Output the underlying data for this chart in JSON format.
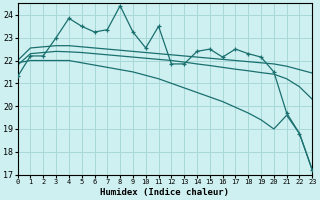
{
  "xlabel": "Humidex (Indice chaleur)",
  "bg_color": "#cff0f0",
  "grid_color": "#a8d8d8",
  "line_color": "#1a7070",
  "xlim": [
    0,
    23
  ],
  "ylim": [
    17,
    24.5
  ],
  "yticks": [
    17,
    18,
    19,
    20,
    21,
    22,
    23,
    24
  ],
  "xticks": [
    0,
    1,
    2,
    3,
    4,
    5,
    6,
    7,
    8,
    9,
    10,
    11,
    12,
    13,
    14,
    15,
    16,
    17,
    18,
    19,
    20,
    21,
    22,
    23
  ],
  "curve_jagged_x": [
    0,
    1,
    2,
    3,
    4,
    5,
    6,
    7,
    8,
    9,
    10,
    11,
    12,
    13,
    14,
    15,
    16,
    17,
    18,
    19,
    20,
    21,
    22,
    23
  ],
  "curve_jagged_y": [
    21.3,
    22.2,
    22.2,
    23.0,
    23.85,
    23.5,
    23.25,
    23.35,
    24.4,
    23.25,
    22.55,
    23.5,
    21.85,
    21.85,
    22.4,
    22.5,
    22.15,
    22.5,
    22.3,
    22.15,
    21.5,
    19.7,
    18.8,
    17.2
  ],
  "curve_upper_x": [
    0,
    1,
    2,
    3,
    4,
    5,
    6,
    7,
    8,
    9,
    10,
    11,
    12,
    13,
    14,
    15,
    16,
    17,
    18,
    19,
    20,
    21,
    22,
    23
  ],
  "curve_upper_y": [
    22.0,
    22.55,
    22.6,
    22.65,
    22.65,
    22.6,
    22.55,
    22.5,
    22.45,
    22.4,
    22.35,
    22.3,
    22.25,
    22.2,
    22.15,
    22.1,
    22.05,
    22.0,
    21.95,
    21.9,
    21.85,
    21.75,
    21.6,
    21.45
  ],
  "curve_mid_x": [
    0,
    1,
    2,
    3,
    4,
    5,
    6,
    7,
    8,
    9,
    10,
    11,
    12,
    13,
    14,
    15,
    16,
    17,
    18,
    19,
    20,
    21,
    22,
    23
  ],
  "curve_mid_y": [
    21.8,
    22.3,
    22.35,
    22.4,
    22.38,
    22.35,
    22.3,
    22.25,
    22.2,
    22.15,
    22.1,
    22.05,
    22.0,
    21.93,
    21.85,
    21.78,
    21.7,
    21.62,
    21.55,
    21.47,
    21.4,
    21.2,
    20.85,
    20.3
  ],
  "curve_steep_x": [
    0,
    1,
    2,
    3,
    4,
    5,
    6,
    7,
    8,
    9,
    10,
    11,
    12,
    13,
    14,
    15,
    16,
    17,
    18,
    19,
    20,
    21,
    22,
    23
  ],
  "curve_steep_y": [
    21.9,
    22.0,
    22.0,
    22.0,
    22.0,
    21.9,
    21.8,
    21.7,
    21.6,
    21.5,
    21.35,
    21.2,
    21.0,
    20.8,
    20.6,
    20.4,
    20.2,
    19.95,
    19.7,
    19.4,
    19.0,
    19.6,
    18.8,
    17.2
  ]
}
